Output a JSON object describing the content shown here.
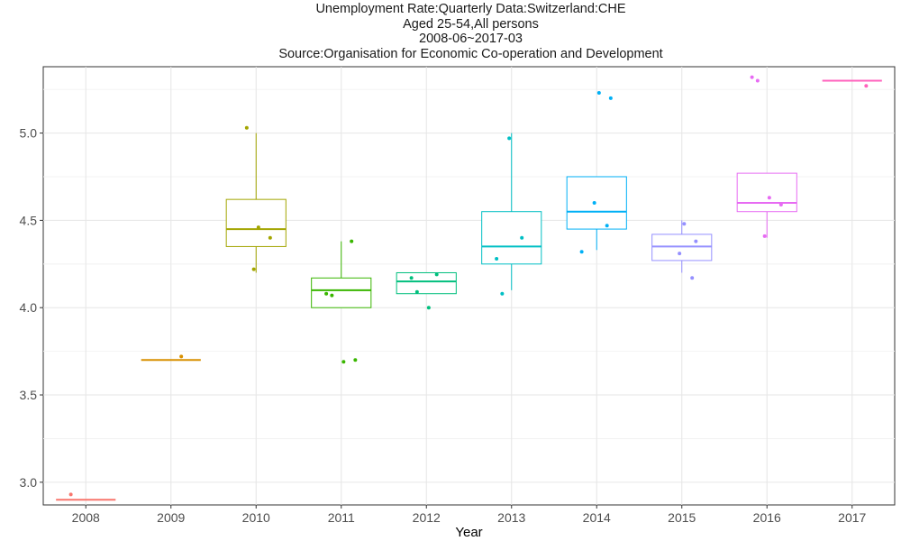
{
  "chart_data": {
    "type": "box",
    "title_lines": [
      "Unemployment Rate:Quarterly Data:Switzerland:CHE",
      "Aged 25-54,All persons",
      "2008-06~2017-03",
      "Source:Organisation for Economic Co-operation and Development"
    ],
    "xlabel": "Year",
    "ylabel": "",
    "ylim": [
      2.87,
      5.38
    ],
    "y_ticks": [
      "3.0",
      "3.5",
      "4.0",
      "4.5",
      "5.0"
    ],
    "categories": [
      "2008",
      "2009",
      "2010",
      "2011",
      "2012",
      "2013",
      "2014",
      "2015",
      "2016",
      "2017"
    ],
    "colors": [
      "#F8766D",
      "#D89000",
      "#A3A500",
      "#39B600",
      "#00BF7D",
      "#00BFC4",
      "#00B0F6",
      "#9590FF",
      "#E76BF3",
      "#FF62BC"
    ],
    "boxes": [
      {
        "year": "2008",
        "min": 2.9,
        "q1": 2.9,
        "median": 2.9,
        "q3": 2.9,
        "max": 2.9,
        "points": [
          2.93
        ]
      },
      {
        "year": "2009",
        "min": 3.7,
        "q1": 3.7,
        "median": 3.7,
        "q3": 3.7,
        "max": 3.7,
        "points": [
          3.72
        ]
      },
      {
        "year": "2010",
        "min": 4.2,
        "q1": 4.35,
        "median": 4.45,
        "q3": 4.62,
        "max": 5.0,
        "points": [
          4.22,
          4.4,
          4.46,
          5.03
        ]
      },
      {
        "year": "2011",
        "min": 4.0,
        "q1": 4.0,
        "median": 4.1,
        "q3": 4.17,
        "max": 4.38,
        "points": [
          3.7,
          3.69,
          4.07,
          4.08,
          4.38
        ]
      },
      {
        "year": "2012",
        "min": 4.08,
        "q1": 4.08,
        "median": 4.15,
        "q3": 4.2,
        "max": 4.2,
        "points": [
          4.0,
          4.09,
          4.17,
          4.19
        ]
      },
      {
        "year": "2013",
        "min": 4.1,
        "q1": 4.25,
        "median": 4.35,
        "q3": 4.55,
        "max": 5.0,
        "points": [
          4.08,
          4.28,
          4.4,
          4.97
        ]
      },
      {
        "year": "2014",
        "min": 4.33,
        "q1": 4.45,
        "median": 4.55,
        "q3": 4.75,
        "max": 4.75,
        "points": [
          4.32,
          4.47,
          4.6,
          5.2,
          5.23
        ]
      },
      {
        "year": "2015",
        "min": 4.2,
        "q1": 4.27,
        "median": 4.35,
        "q3": 4.42,
        "max": 4.5,
        "points": [
          4.17,
          4.31,
          4.38,
          4.48
        ]
      },
      {
        "year": "2016",
        "min": 4.4,
        "q1": 4.55,
        "median": 4.6,
        "q3": 4.77,
        "max": 4.77,
        "points": [
          4.41,
          4.59,
          4.63,
          5.3,
          5.32
        ]
      },
      {
        "year": "2017",
        "min": 5.3,
        "q1": 5.3,
        "median": 5.3,
        "q3": 5.3,
        "max": 5.3,
        "points": [
          5.27
        ]
      }
    ],
    "grid": true,
    "legend": "none"
  }
}
